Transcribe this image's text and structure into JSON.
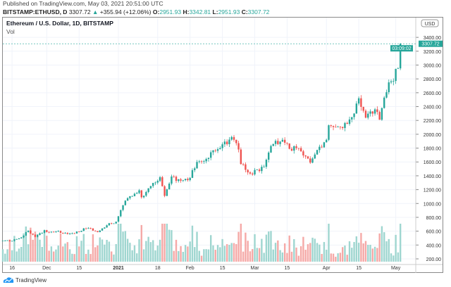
{
  "header": {
    "published": "Published on TradingView.com, May 03, 2021 20:51:00 UTC",
    "symbol": "BITSTAMP:ETHUSD, D",
    "last": "3307.72",
    "change": "+355.94 (+12.06%)",
    "o_label": "O:",
    "o": "2951.93",
    "h_label": "H:",
    "h": "3342.81",
    "l_label": "L:",
    "l": "2951.93",
    "c_label": "C:",
    "c": "3307.72"
  },
  "legend": {
    "title": "Ethereum / U.S. Dollar, 1D, BITSTAMP",
    "vol": "Vol"
  },
  "colors": {
    "up": "#26a69a",
    "down": "#ef5350",
    "up_vol": "#9fd6d0",
    "down_vol": "#f5a9a7"
  },
  "footer": {
    "brand": "TradingView"
  },
  "chart_data": {
    "type": "candlestick",
    "currency": "USD",
    "last_price_label": "3307.72",
    "countdown": "03:09:02",
    "ylim": [
      150,
      3500
    ],
    "yticks": [
      "200.00",
      "400.00",
      "600.00",
      "800.00",
      "1000.00",
      "1200.00",
      "1400.00",
      "1600.00",
      "1800.00",
      "2000.00",
      "2200.00",
      "2400.00",
      "2600.00",
      "2800.00",
      "3000.00",
      "3200.00",
      "3400.00"
    ],
    "xticks": [
      {
        "date": "2020-11-16",
        "label": "16"
      },
      {
        "date": "2020-12-01",
        "label": "Dec"
      },
      {
        "date": "2020-12-15",
        "label": "15"
      },
      {
        "date": "2021-01-01",
        "label": "2021",
        "bold": true
      },
      {
        "date": "2021-01-18",
        "label": "18"
      },
      {
        "date": "2021-02-01",
        "label": "Feb"
      },
      {
        "date": "2021-02-15",
        "label": "15"
      },
      {
        "date": "2021-03-01",
        "label": "Mar"
      },
      {
        "date": "2021-03-15",
        "label": "15"
      },
      {
        "date": "2021-04-01",
        "label": "Apr"
      },
      {
        "date": "2021-04-15",
        "label": "15"
      },
      {
        "date": "2021-05-01",
        "label": "May"
      }
    ],
    "start_date": "2020-11-12",
    "close_keypoints": [
      [
        "2020-11-12",
        462
      ],
      [
        "2020-11-16",
        460
      ],
      [
        "2020-11-20",
        510
      ],
      [
        "2020-11-23",
        608
      ],
      [
        "2020-11-26",
        518
      ],
      [
        "2020-11-30",
        615
      ],
      [
        "2020-12-01",
        588
      ],
      [
        "2020-12-05",
        597
      ],
      [
        "2020-12-10",
        560
      ],
      [
        "2020-12-15",
        590
      ],
      [
        "2020-12-17",
        640
      ],
      [
        "2020-12-20",
        640
      ],
      [
        "2020-12-23",
        586
      ],
      [
        "2020-12-27",
        685
      ],
      [
        "2020-12-31",
        737
      ],
      [
        "2021-01-03",
        975
      ],
      [
        "2021-01-04",
        1040
      ],
      [
        "2021-01-10",
        1190
      ],
      [
        "2021-01-11",
        1090
      ],
      [
        "2021-01-14",
        1220
      ],
      [
        "2021-01-19",
        1380
      ],
      [
        "2021-01-21",
        1110
      ],
      [
        "2021-01-24",
        1390
      ],
      [
        "2021-01-28",
        1330
      ],
      [
        "2021-02-01",
        1370
      ],
      [
        "2021-02-04",
        1600
      ],
      [
        "2021-02-07",
        1610
      ],
      [
        "2021-02-10",
        1740
      ],
      [
        "2021-02-14",
        1800
      ],
      [
        "2021-02-19",
        1960
      ],
      [
        "2021-02-20",
        1920
      ],
      [
        "2021-02-22",
        1780
      ],
      [
        "2021-02-23",
        1570
      ],
      [
        "2021-02-26",
        1450
      ],
      [
        "2021-02-28",
        1420
      ],
      [
        "2021-03-02",
        1490
      ],
      [
        "2021-03-05",
        1530
      ],
      [
        "2021-03-08",
        1830
      ],
      [
        "2021-03-13",
        1920
      ],
      [
        "2021-03-16",
        1790
      ],
      [
        "2021-03-20",
        1800
      ],
      [
        "2021-03-23",
        1680
      ],
      [
        "2021-03-25",
        1590
      ],
      [
        "2021-03-29",
        1820
      ],
      [
        "2021-04-01",
        1920
      ],
      [
        "2021-04-02",
        2130
      ],
      [
        "2021-04-06",
        2110
      ],
      [
        "2021-04-10",
        2150
      ],
      [
        "2021-04-13",
        2300
      ],
      [
        "2021-04-15",
        2520
      ],
      [
        "2021-04-17",
        2340
      ],
      [
        "2021-04-18",
        2240
      ],
      [
        "2021-04-20",
        2330
      ],
      [
        "2021-04-22",
        2360
      ],
      [
        "2021-04-24",
        2210
      ],
      [
        "2021-04-26",
        2530
      ],
      [
        "2021-04-28",
        2750
      ],
      [
        "2021-04-30",
        2770
      ],
      [
        "2021-05-01",
        2945
      ],
      [
        "2021-05-02",
        2952
      ],
      [
        "2021-05-03",
        3307.72
      ]
    ]
  }
}
